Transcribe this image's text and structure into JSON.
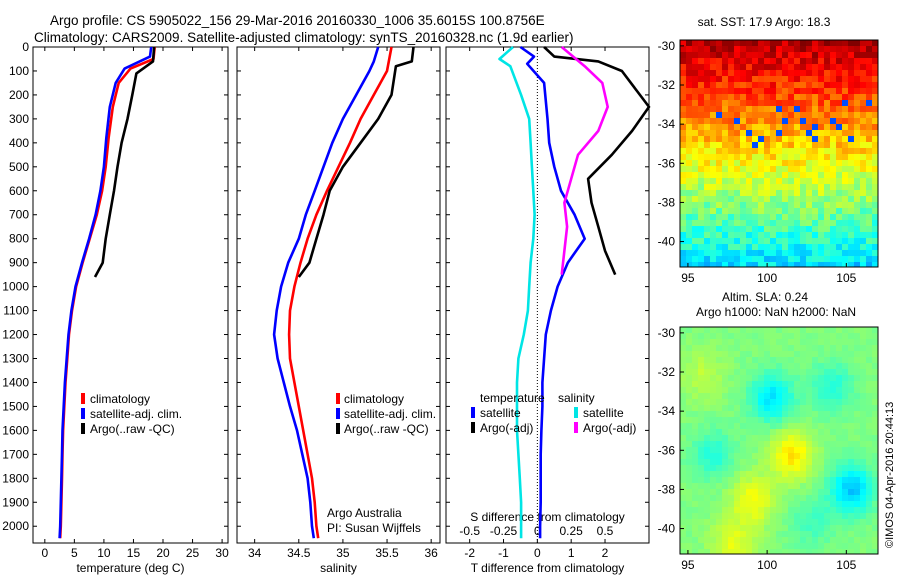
{
  "header": {
    "line1": "Argo profile: CS 5905022_156 29-Mar-2016 20160330_1006 35.6015S 100.8756E",
    "line2": "Climatology: CARS2009. Satellite-adjusted climatology: synTS_20160328.nc (1.9d earlier)"
  },
  "colors": {
    "climatology": "#ff0000",
    "satellite": "#0000ff",
    "argo": "#000000",
    "sal_satellite": "#00e5e5",
    "sal_argo": "#ff00ff"
  },
  "chart_data": [
    {
      "id": "temperature",
      "type": "line",
      "xlabel": "temperature (deg C)",
      "ylabel": "",
      "xlim": [
        -2,
        31
      ],
      "ylim": [
        2070,
        0
      ],
      "xticks": [
        0,
        5,
        10,
        15,
        20,
        25,
        30
      ],
      "yticks": [
        0,
        100,
        200,
        300,
        400,
        500,
        600,
        700,
        800,
        900,
        1000,
        1100,
        1200,
        1300,
        1400,
        1500,
        1600,
        1700,
        1800,
        1900,
        2000
      ],
      "legend": [
        "climatology",
        "satellite-adj. clim.",
        "Argo(..raw -QC)"
      ],
      "series": [
        {
          "name": "climatology",
          "color": "#ff0000",
          "points": [
            [
              18.6,
              0
            ],
            [
              18.4,
              50
            ],
            [
              14.5,
              90
            ],
            [
              12.5,
              150
            ],
            [
              11.5,
              250
            ],
            [
              10.8,
              380
            ],
            [
              10.3,
              500
            ],
            [
              9.7,
              600
            ],
            [
              8.8,
              700
            ],
            [
              7.6,
              800
            ],
            [
              6.4,
              900
            ],
            [
              5.3,
              1000
            ],
            [
              4.6,
              1100
            ],
            [
              4.1,
              1200
            ],
            [
              3.8,
              1300
            ],
            [
              3.5,
              1400
            ],
            [
              3.3,
              1500
            ],
            [
              3.1,
              1600
            ],
            [
              3.0,
              1700
            ],
            [
              2.9,
              1800
            ],
            [
              2.8,
              1900
            ],
            [
              2.7,
              2000
            ],
            [
              2.6,
              2050
            ]
          ]
        },
        {
          "name": "satellite-adj. clim.",
          "color": "#0000ff",
          "points": [
            [
              18.0,
              0
            ],
            [
              17.8,
              40
            ],
            [
              13.5,
              90
            ],
            [
              12.0,
              150
            ],
            [
              11.0,
              250
            ],
            [
              10.4,
              380
            ],
            [
              10.0,
              500
            ],
            [
              9.4,
              600
            ],
            [
              8.6,
              700
            ],
            [
              7.5,
              800
            ],
            [
              6.3,
              900
            ],
            [
              5.2,
              1000
            ],
            [
              4.5,
              1100
            ],
            [
              4.0,
              1200
            ],
            [
              3.7,
              1300
            ],
            [
              3.4,
              1400
            ],
            [
              3.2,
              1500
            ],
            [
              3.0,
              1600
            ],
            [
              2.9,
              1700
            ],
            [
              2.8,
              1800
            ],
            [
              2.7,
              1900
            ],
            [
              2.6,
              2000
            ],
            [
              2.5,
              2050
            ]
          ]
        },
        {
          "name": "Argo(..raw -QC)",
          "color": "#000000",
          "points": [
            [
              18.5,
              0
            ],
            [
              18.3,
              60
            ],
            [
              15.5,
              110
            ],
            [
              14.8,
              200
            ],
            [
              14.0,
              300
            ],
            [
              13.0,
              400
            ],
            [
              12.3,
              500
            ],
            [
              11.7,
              600
            ],
            [
              11.0,
              700
            ],
            [
              10.3,
              800
            ],
            [
              9.8,
              900
            ],
            [
              8.5,
              960
            ]
          ]
        }
      ]
    },
    {
      "id": "salinity",
      "type": "line",
      "xlabel": "salinity",
      "ylabel": "",
      "xlim": [
        33.8,
        36.1
      ],
      "ylim": [
        2070,
        0
      ],
      "xticks": [
        34,
        34.5,
        35,
        35.5,
        36
      ],
      "legend": [
        "climatology",
        "satellite-adj. clim.",
        "Argo(..raw -QC)"
      ],
      "annotation": [
        "Argo Australia",
        "PI: Susan Wijffels"
      ],
      "series": [
        {
          "name": "climatology",
          "color": "#ff0000",
          "points": [
            [
              35.55,
              0
            ],
            [
              35.5,
              100
            ],
            [
              35.35,
              200
            ],
            [
              35.2,
              300
            ],
            [
              35.08,
              400
            ],
            [
              34.95,
              500
            ],
            [
              34.82,
              600
            ],
            [
              34.7,
              700
            ],
            [
              34.6,
              800
            ],
            [
              34.52,
              900
            ],
            [
              34.45,
              1000
            ],
            [
              34.4,
              1100
            ],
            [
              34.39,
              1200
            ],
            [
              34.4,
              1300
            ],
            [
              34.45,
              1400
            ],
            [
              34.5,
              1500
            ],
            [
              34.55,
              1600
            ],
            [
              34.6,
              1700
            ],
            [
              34.65,
              1800
            ],
            [
              34.68,
              1900
            ],
            [
              34.7,
              2000
            ],
            [
              34.72,
              2050
            ]
          ]
        },
        {
          "name": "satellite-adj. clim.",
          "color": "#0000ff",
          "points": [
            [
              35.4,
              0
            ],
            [
              35.35,
              60
            ],
            [
              35.3,
              100
            ],
            [
              35.15,
              200
            ],
            [
              35.0,
              300
            ],
            [
              34.88,
              400
            ],
            [
              34.78,
              500
            ],
            [
              34.68,
              600
            ],
            [
              34.58,
              700
            ],
            [
              34.5,
              800
            ],
            [
              34.38,
              900
            ],
            [
              34.3,
              1000
            ],
            [
              34.25,
              1100
            ],
            [
              34.22,
              1200
            ],
            [
              34.26,
              1300
            ],
            [
              34.33,
              1400
            ],
            [
              34.4,
              1500
            ],
            [
              34.48,
              1600
            ],
            [
              34.54,
              1700
            ],
            [
              34.6,
              1800
            ],
            [
              34.63,
              1900
            ],
            [
              34.65,
              2000
            ],
            [
              34.67,
              2050
            ]
          ]
        },
        {
          "name": "Argo(..raw -QC)",
          "color": "#000000",
          "points": [
            [
              35.8,
              0
            ],
            [
              35.78,
              60
            ],
            [
              35.6,
              80
            ],
            [
              35.55,
              200
            ],
            [
              35.4,
              300
            ],
            [
              35.2,
              400
            ],
            [
              35.0,
              500
            ],
            [
              34.85,
              600
            ],
            [
              34.78,
              700
            ],
            [
              34.7,
              800
            ],
            [
              34.62,
              900
            ],
            [
              34.5,
              960
            ]
          ]
        }
      ]
    },
    {
      "id": "differences",
      "type": "line",
      "xlabel": "T difference from climatology",
      "xlabel_top": "S difference from climatology",
      "xlim": [
        -2.7,
        3.3
      ],
      "ylim": [
        2070,
        0
      ],
      "xticks": [
        -2,
        -1,
        0,
        1,
        2
      ],
      "xticks_top": [
        -0.5,
        -0.25,
        0,
        0.25,
        0.5
      ],
      "legend_temperature": {
        "title": "temperature",
        "items": [
          "satellite",
          "Argo(-adj)"
        ]
      },
      "legend_salinity": {
        "title": "salinity",
        "items": [
          "satellite",
          "Argo(-adj)"
        ]
      },
      "series": [
        {
          "name": "temperature satellite",
          "color": "#0000ff",
          "points": [
            [
              -0.5,
              0
            ],
            [
              -0.1,
              40
            ],
            [
              -0.3,
              70
            ],
            [
              0.2,
              150
            ],
            [
              0.3,
              300
            ],
            [
              0.35,
              400
            ],
            [
              0.5,
              500
            ],
            [
              0.7,
              600
            ],
            [
              1.1,
              700
            ],
            [
              1.4,
              800
            ],
            [
              0.9,
              900
            ],
            [
              0.6,
              1000
            ],
            [
              0.4,
              1100
            ],
            [
              0.25,
              1200
            ],
            [
              0.2,
              1300
            ],
            [
              0.15,
              1400
            ],
            [
              0.15,
              1500
            ],
            [
              0.12,
              1600
            ],
            [
              0.1,
              1700
            ],
            [
              0.1,
              1800
            ],
            [
              0.1,
              1900
            ],
            [
              0.08,
              2000
            ],
            [
              0.08,
              2050
            ]
          ]
        },
        {
          "name": "temperature Argo(-adj)",
          "color": "#000000",
          "points": [
            [
              0.2,
              0
            ],
            [
              0.5,
              40
            ],
            [
              1.8,
              60
            ],
            [
              2.5,
              100
            ],
            [
              3.3,
              250
            ],
            [
              2.8,
              350
            ],
            [
              2.2,
              450
            ],
            [
              1.5,
              550
            ],
            [
              1.6,
              650
            ],
            [
              1.8,
              750
            ],
            [
              2.0,
              850
            ],
            [
              2.3,
              950
            ]
          ]
        },
        {
          "name": "salinity satellite",
          "color": "#00e5e5",
          "points": [
            [
              -0.18,
              0
            ],
            [
              -0.28,
              50
            ],
            [
              -0.2,
              80
            ],
            [
              -0.12,
              200
            ],
            [
              -0.06,
              300
            ],
            [
              -0.05,
              400
            ],
            [
              -0.04,
              500
            ],
            [
              -0.03,
              600
            ],
            [
              -0.02,
              700
            ],
            [
              -0.03,
              800
            ],
            [
              -0.05,
              900
            ],
            [
              -0.06,
              1000
            ],
            [
              -0.07,
              1100
            ],
            [
              -0.1,
              1200
            ],
            [
              -0.14,
              1300
            ],
            [
              -0.15,
              1400
            ],
            [
              -0.15,
              1500
            ],
            [
              -0.15,
              1600
            ],
            [
              -0.14,
              1700
            ],
            [
              -0.13,
              1800
            ],
            [
              -0.12,
              1900
            ],
            [
              -0.12,
              2000
            ],
            [
              -0.12,
              2050
            ]
          ]
        },
        {
          "name": "salinity Argo(-adj)",
          "color": "#ff00ff",
          "points": [
            [
              0.18,
              0
            ],
            [
              0.35,
              80
            ],
            [
              0.48,
              150
            ],
            [
              0.52,
              250
            ],
            [
              0.45,
              350
            ],
            [
              0.3,
              450
            ],
            [
              0.25,
              550
            ],
            [
              0.2,
              650
            ],
            [
              0.22,
              750
            ],
            [
              0.2,
              850
            ],
            [
              0.18,
              950
            ]
          ]
        }
      ]
    },
    {
      "id": "sst-map",
      "type": "heatmap",
      "title": "sat. SST: 17.9 Argo: 18.3",
      "xlim": [
        94.5,
        107
      ],
      "ylim": [
        -41.3,
        -29.7
      ],
      "xticks": [
        95,
        100,
        105
      ],
      "yticks": [
        -30,
        -32,
        -34,
        -36,
        -38,
        -40
      ]
    },
    {
      "id": "sla-map",
      "type": "heatmap",
      "title": "Altim. SLA: 0.24",
      "subtitle": "Argo h1000: NaN h2000: NaN",
      "xlim": [
        94.5,
        107
      ],
      "ylim": [
        -41.3,
        -29.7
      ],
      "xticks": [
        95,
        100,
        105
      ],
      "yticks": [
        -30,
        -32,
        -34,
        -36,
        -38,
        -40
      ]
    }
  ],
  "side_stamp": "©IMOS 04-Apr-2016 20:44:13"
}
